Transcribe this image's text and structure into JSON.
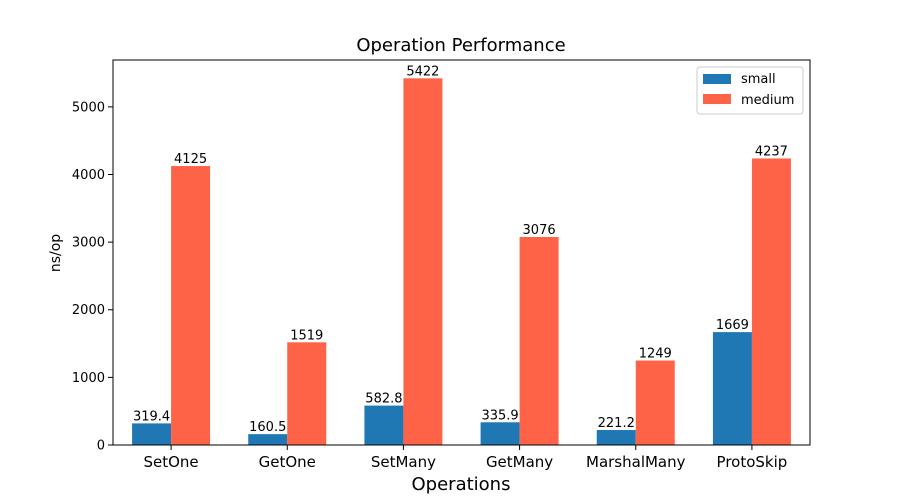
{
  "chart_data": {
    "type": "bar",
    "title": "Operation Performance",
    "xlabel": "Operations",
    "ylabel": "ns/op",
    "categories": [
      "SetOne",
      "GetOne",
      "SetMany",
      "GetMany",
      "MarshalMany",
      "ProtoSkip"
    ],
    "series": [
      {
        "name": "small",
        "color": "#1f77b4",
        "values": [
          319.4,
          160.5,
          582.8,
          335.9,
          221.2,
          1669
        ],
        "labels": [
          "319.4",
          "160.5",
          "582.8",
          "335.9",
          "221.2",
          "1669"
        ]
      },
      {
        "name": "medium",
        "color": "#ff6347",
        "values": [
          4125,
          1519,
          5422,
          3076,
          1249,
          4237
        ],
        "labels": [
          "4125",
          "1519",
          "5422",
          "3076",
          "1249",
          "4237"
        ]
      }
    ],
    "ylim": [
      0,
      5693
    ],
    "yticks": [
      0,
      1000,
      2000,
      3000,
      4000,
      5000
    ],
    "grid": false,
    "legend_position": "top-right"
  }
}
